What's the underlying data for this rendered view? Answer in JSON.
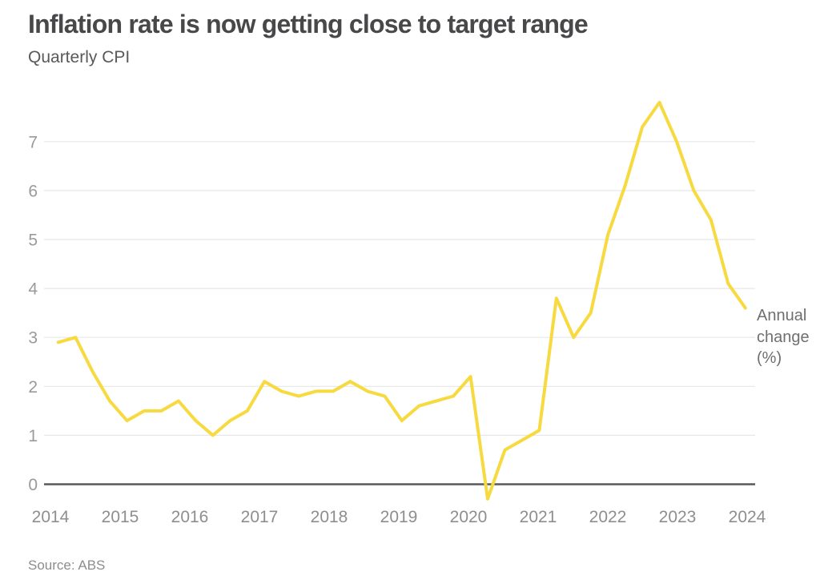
{
  "header": {
    "title": "Inflation rate is now getting close to target range",
    "subtitle": "Quarterly CPI"
  },
  "footer": {
    "source": "Source: ABS"
  },
  "colors": {
    "line": "#f7d940",
    "grid": "#e7e7e7",
    "zero_axis": "#58585b",
    "y_tick_text": "#9a9a9a",
    "x_tick_text": "#8e8e8e"
  },
  "chart_data": {
    "type": "line",
    "title": "Inflation rate is now getting close to target range",
    "subtitle": "Quarterly CPI",
    "ylabel": "Annual change (%)",
    "x_start": "2014 Q1",
    "x_end": "2024 Q1",
    "x_frequency": "quarterly",
    "values": [
      2.9,
      3.0,
      2.3,
      1.7,
      1.3,
      1.5,
      1.5,
      1.7,
      1.3,
      1.0,
      1.3,
      1.5,
      2.1,
      1.9,
      1.8,
      1.9,
      1.9,
      2.1,
      1.9,
      1.8,
      1.3,
      1.6,
      1.7,
      1.8,
      2.2,
      -0.3,
      0.7,
      0.9,
      1.1,
      3.8,
      3.0,
      3.5,
      5.1,
      6.1,
      7.3,
      7.8,
      7.0,
      6.0,
      5.4,
      4.1,
      3.6
    ],
    "xticks": [
      "2014",
      "2015",
      "2016",
      "2017",
      "2018",
      "2019",
      "2020",
      "2021",
      "2022",
      "2023",
      "2024"
    ],
    "yticks": [
      0,
      1,
      2,
      3,
      4,
      5,
      6,
      7
    ],
    "ylim": [
      -0.5,
      7.9
    ],
    "grid": "horizontal",
    "legend": "none",
    "source": "Source: ABS"
  }
}
